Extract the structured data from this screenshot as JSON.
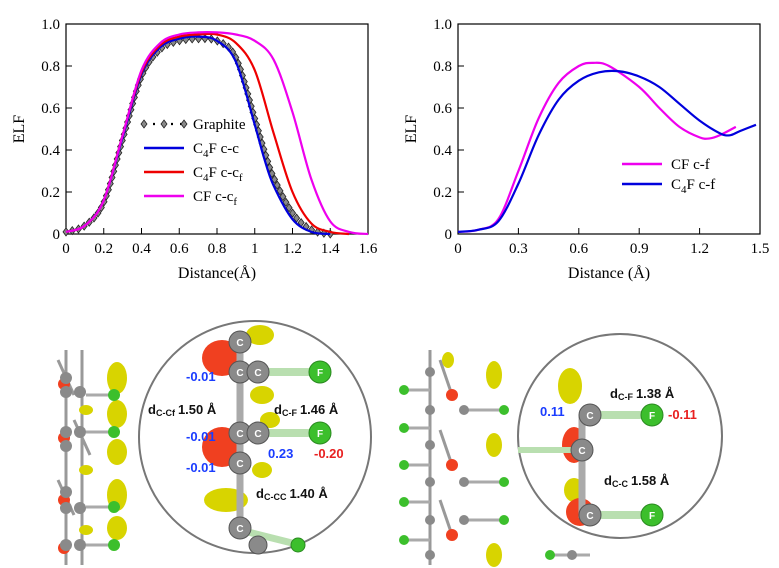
{
  "chart_data": [
    {
      "type": "line",
      "xlabel": "Distance(Å)",
      "ylabel": "ELF",
      "xlim": [
        0,
        1.6
      ],
      "ylim": [
        0,
        1.0
      ],
      "xticks": [
        "0",
        "0.2",
        "0.4",
        "0.6",
        "0.8",
        "1",
        "1.2",
        "1.4",
        "1.6"
      ],
      "yticks": [
        "0",
        "0.2",
        "0.4",
        "0.6",
        "0.8",
        "1.0"
      ],
      "legend_position": "center-left",
      "series": [
        {
          "name": "Graphite",
          "color": "#333333",
          "style": "diamond-markers",
          "legend_parts": [
            "Graphite"
          ],
          "x": [
            0,
            0.1,
            0.2,
            0.3,
            0.4,
            0.5,
            0.6,
            0.7,
            0.8,
            0.9,
            1.0,
            1.05,
            1.1,
            1.2,
            1.3,
            1.4
          ],
          "y": [
            0.01,
            0.04,
            0.15,
            0.45,
            0.75,
            0.88,
            0.92,
            0.93,
            0.92,
            0.84,
            0.55,
            0.4,
            0.27,
            0.1,
            0.02,
            0.0
          ]
        },
        {
          "name": "C4F c-c",
          "color": "#0000dd",
          "style": "line",
          "legend_parts": [
            "C",
            "4",
            "F c-c"
          ],
          "x": [
            0,
            0.1,
            0.2,
            0.3,
            0.4,
            0.5,
            0.6,
            0.7,
            0.8,
            0.9,
            1.0,
            1.05,
            1.1,
            1.2,
            1.3,
            1.4
          ],
          "y": [
            0.01,
            0.04,
            0.16,
            0.46,
            0.76,
            0.89,
            0.93,
            0.94,
            0.92,
            0.82,
            0.52,
            0.36,
            0.23,
            0.07,
            0.01,
            0.0
          ]
        },
        {
          "name": "C4F c-cf",
          "color": "#ee0000",
          "style": "line",
          "legend_parts": [
            "C",
            "4",
            "F c-c",
            "f"
          ],
          "x": [
            0,
            0.1,
            0.2,
            0.3,
            0.4,
            0.5,
            0.6,
            0.7,
            0.8,
            0.9,
            1.0,
            1.1,
            1.2,
            1.3,
            1.4,
            1.5
          ],
          "y": [
            0.01,
            0.04,
            0.16,
            0.47,
            0.77,
            0.9,
            0.94,
            0.95,
            0.95,
            0.91,
            0.78,
            0.48,
            0.2,
            0.05,
            0.01,
            0.0
          ]
        },
        {
          "name": "CF c-cf",
          "color": "#ee00ee",
          "style": "line",
          "legend_parts": [
            "CF c-c",
            "f"
          ],
          "x": [
            0,
            0.1,
            0.2,
            0.3,
            0.4,
            0.5,
            0.6,
            0.7,
            0.8,
            0.9,
            1.0,
            1.1,
            1.2,
            1.3,
            1.4,
            1.5,
            1.6
          ],
          "y": [
            0.01,
            0.04,
            0.16,
            0.47,
            0.78,
            0.91,
            0.95,
            0.96,
            0.96,
            0.95,
            0.92,
            0.83,
            0.58,
            0.26,
            0.06,
            0.01,
            0.0
          ]
        }
      ]
    },
    {
      "type": "line",
      "xlabel": "Distance (Å)",
      "ylabel": "ELF",
      "xlim": [
        0,
        1.5
      ],
      "ylim": [
        0,
        1.0
      ],
      "xticks": [
        "0",
        "0.3",
        "0.6",
        "0.9",
        "1.2",
        "1.5"
      ],
      "yticks": [
        "0",
        "0.2",
        "0.4",
        "0.6",
        "0.8",
        "1.0"
      ],
      "legend_position": "center-right",
      "series": [
        {
          "name": "CF c-f",
          "color": "#ee00ee",
          "style": "line",
          "legend_parts": [
            "CF c-f"
          ],
          "x": [
            0,
            0.1,
            0.2,
            0.3,
            0.4,
            0.5,
            0.6,
            0.67,
            0.75,
            0.9,
            1.0,
            1.1,
            1.2,
            1.25,
            1.3,
            1.38
          ],
          "y": [
            0.01,
            0.02,
            0.07,
            0.3,
            0.55,
            0.72,
            0.8,
            0.815,
            0.8,
            0.7,
            0.6,
            0.51,
            0.46,
            0.455,
            0.47,
            0.51
          ]
        },
        {
          "name": "C4F c-f",
          "color": "#0000dd",
          "style": "line",
          "legend_parts": [
            "C",
            "4",
            "F c-f"
          ],
          "x": [
            0,
            0.1,
            0.2,
            0.3,
            0.4,
            0.5,
            0.6,
            0.7,
            0.8,
            0.9,
            1.0,
            1.1,
            1.2,
            1.3,
            1.35,
            1.4,
            1.48
          ],
          "y": [
            0.01,
            0.02,
            0.06,
            0.24,
            0.47,
            0.64,
            0.73,
            0.77,
            0.775,
            0.75,
            0.7,
            0.62,
            0.54,
            0.48,
            0.47,
            0.49,
            0.52
          ]
        }
      ]
    }
  ],
  "structures": {
    "left": {
      "atom_c": "C",
      "atom_f": "F",
      "charges": [
        "-0.01",
        "-0.01",
        "-0.01",
        "0.23",
        "-0.20"
      ],
      "d_ccf_sub": "C-Cf",
      "d_ccf_val": "1.50 Å",
      "d_cf_sub": "C-F",
      "d_cf_val": "1.46 Å",
      "d_cc_sub": "C-CC",
      "d_cc_val": "1.40 Å"
    },
    "right": {
      "atom_c": "C",
      "atom_f": "F",
      "charges": [
        "0.11",
        "-0.11"
      ],
      "d_cf_sub": "C-F",
      "d_cf_val": "1.38 Å",
      "d_cc_sub": "C-C",
      "d_cc_val": "1.58 Å"
    },
    "colors": {
      "carbon": "#8a8a8a",
      "fluorine": "#3cbf2c",
      "elf_positive": "#d8d400",
      "elf_negative": "#f04020",
      "charge_blue": "#1a3cff",
      "charge_red": "#e82020"
    }
  }
}
